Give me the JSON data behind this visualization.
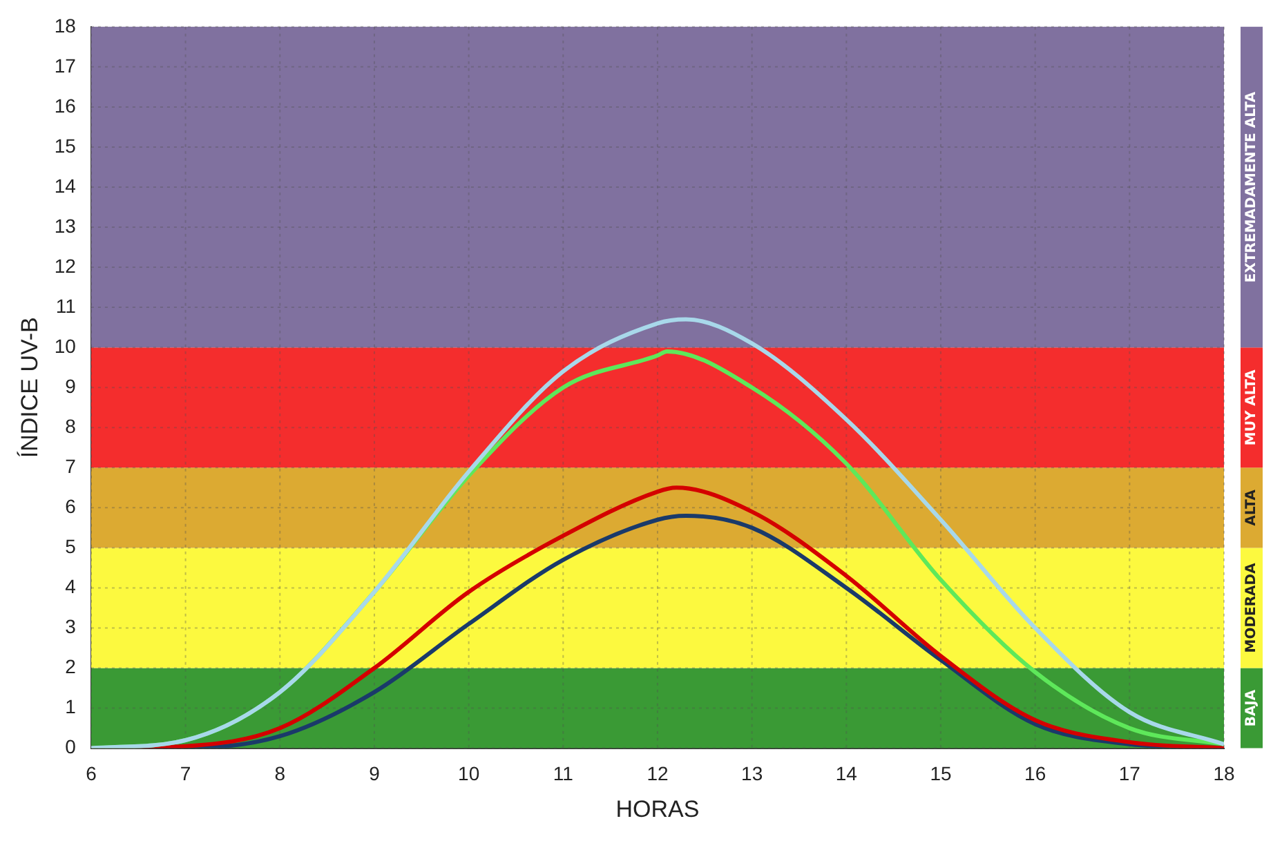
{
  "chart_data": {
    "type": "line",
    "xlabel": "HORAS",
    "ylabel": "ÍNDICE UV-B",
    "xlim": [
      6,
      18
    ],
    "ylim": [
      0,
      18
    ],
    "xticks": [
      6,
      7,
      8,
      9,
      10,
      11,
      12,
      13,
      14,
      15,
      16,
      17,
      18
    ],
    "yticks": [
      0,
      1,
      2,
      3,
      4,
      5,
      6,
      7,
      8,
      9,
      10,
      11,
      12,
      13,
      14,
      15,
      16,
      17,
      18
    ],
    "grid": true,
    "legend": false,
    "marker": "none",
    "line_style": "solid",
    "bands": [
      {
        "axis": "y",
        "from": 0,
        "to": 2,
        "label": "BAJA",
        "color": "#3a9a35"
      },
      {
        "axis": "y",
        "from": 2,
        "to": 5,
        "label": "MODERADA",
        "color": "#fcf93f"
      },
      {
        "axis": "y",
        "from": 5,
        "to": 7,
        "label": "ALTA",
        "color": "#dcaa32"
      },
      {
        "axis": "y",
        "from": 7,
        "to": 10,
        "label": "MUY ALTA",
        "color": "#f42d2d"
      },
      {
        "axis": "y",
        "from": 10,
        "to": 18,
        "label": "EXTREMADAMENTE ALTA",
        "color": "#80719f"
      }
    ],
    "series": [
      {
        "color": "#a8d8ea",
        "x": [
          6,
          7,
          8,
          9,
          10,
          11,
          12,
          12.3,
          13,
          14,
          15,
          16,
          17,
          18
        ],
        "values": [
          0,
          0.2,
          1.4,
          3.9,
          6.9,
          9.4,
          10.6,
          10.7,
          10.1,
          8.2,
          5.7,
          3.0,
          0.9,
          0.1
        ]
      },
      {
        "color": "#5ee85a",
        "x": [
          6,
          7,
          8,
          9,
          10,
          11,
          12,
          12.1,
          13,
          14,
          15,
          16,
          17,
          18
        ],
        "values": [
          0,
          0.2,
          1.4,
          3.9,
          6.8,
          9.0,
          9.8,
          9.9,
          9.0,
          7.1,
          4.2,
          1.9,
          0.5,
          0.1
        ]
      },
      {
        "color": "#d40000",
        "x": [
          6,
          7,
          8,
          9,
          10,
          11,
          12,
          12.2,
          13,
          14,
          15,
          16,
          17,
          18
        ],
        "values": [
          0,
          0.05,
          0.5,
          2.0,
          3.9,
          5.3,
          6.4,
          6.5,
          5.9,
          4.3,
          2.3,
          0.7,
          0.15,
          0
        ]
      },
      {
        "color": "#1a3a6a",
        "x": [
          6,
          7,
          8,
          9,
          10,
          11,
          12,
          12.3,
          13,
          14,
          15,
          16,
          17,
          18
        ],
        "values": [
          0,
          0,
          0.3,
          1.4,
          3.1,
          4.7,
          5.7,
          5.8,
          5.5,
          4.0,
          2.2,
          0.6,
          0.1,
          0
        ]
      }
    ]
  }
}
